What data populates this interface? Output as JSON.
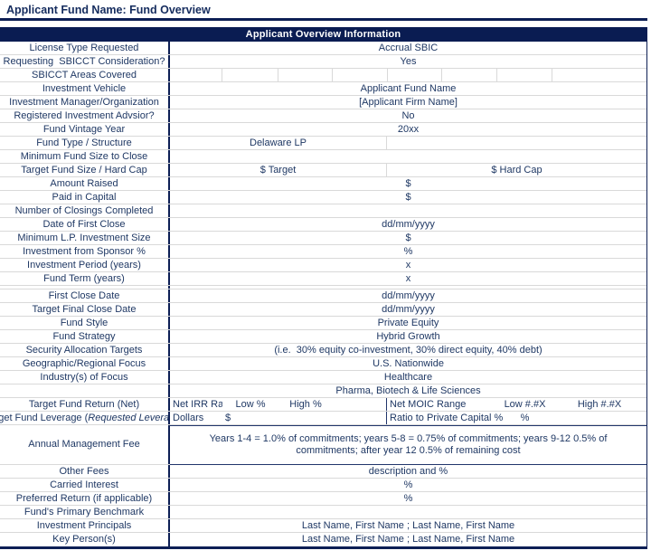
{
  "page_title": "Applicant Fund Name: Fund Overview",
  "table_header": "Applicant Overview Information",
  "colors": {
    "navy_bar": "#0a1c52",
    "navy_rule": "#0d1f55",
    "text_navy": "#1f3864",
    "grid_gray": "#d9d9d9"
  },
  "rows": [
    {
      "label": "License Type Requested",
      "value": "Accrual SBIC"
    },
    {
      "label": "Requesting  SBICCT Consideration?",
      "value": "Yes"
    },
    {
      "label": "SBICCT Areas Covered",
      "cells": [
        "",
        "",
        "",
        "",
        "",
        "",
        "",
        ""
      ]
    },
    {
      "label": "Investment Vehicle",
      "value": "Applicant Fund Name"
    },
    {
      "label": "Investment Manager/Organization",
      "value": "[Applicant Firm Name]"
    },
    {
      "label": "Registered Investment Advsior?",
      "value": "No"
    },
    {
      "label": "Fund Vintage Year",
      "value": "20xx"
    },
    {
      "label": "Fund Type / Structure",
      "value": "Delaware LP"
    },
    {
      "label": "Minimum Fund Size to Close",
      "value": ""
    },
    {
      "label": "Target Fund Size / Hard Cap",
      "left": "$ Target",
      "right": "$ Hard Cap"
    },
    {
      "label": "Amount Raised",
      "value": "$"
    },
    {
      "label": "Paid in Capital",
      "value": "$"
    },
    {
      "label": "Number of Closings Completed",
      "value": ""
    },
    {
      "label": "Date of First Close",
      "value": "dd/mm/yyyy"
    },
    {
      "label": "Minimum L.P. Investment Size",
      "value": "$"
    },
    {
      "label": "Investment from Sponsor %",
      "value": "%"
    },
    {
      "label": "Investment Period (years)",
      "value": "x"
    },
    {
      "label": "Fund Term (years)",
      "value": "x"
    },
    {
      "label": "First Close Date",
      "value": "dd/mm/yyyy"
    },
    {
      "label": "Target Final Close Date",
      "value": "dd/mm/yyyy"
    },
    {
      "label": "Fund Style",
      "value": "Private Equity"
    },
    {
      "label": "Fund Strategy",
      "value": "Hybrid Growth"
    },
    {
      "label": "Security Allocation Targets",
      "value": "(i.e.  30% equity co-investment, 30% direct equity, 40% debt)"
    },
    {
      "label": "Geographic/Regional Focus",
      "value": "U.S. Nationwide"
    },
    {
      "label": "Industry(s) of Focus",
      "value": "Healthcare"
    },
    {
      "label": "",
      "value": "Pharma, Biotech & Life Sciences"
    }
  ],
  "return_row": {
    "label": "Target Fund Return (Net)",
    "irr_label": "Net IRR Range",
    "low_pct": "Low %",
    "high_pct": "High %",
    "moic_label": "Net MOIC Range",
    "low_x": "Low #.#X",
    "high_x": "High #.#X"
  },
  "leverage_row": {
    "label_prefix": "Target Fund Leverage (",
    "label_italic": "Requested Leverage)",
    "dollars": "Dollars",
    "dollar_sign": "$",
    "ratio_label": "Ratio to Private Capital %",
    "pct": "%"
  },
  "management_fee_row": {
    "label": "Annual Management Fee",
    "value": "Years 1-4 = 1.0% of commitments; years 5-8 = 0.75% of commitments; years 9-12 0.5% of commitments; after year 12 0.5% of remaining cost"
  },
  "bottom_rows": [
    {
      "label": "Other Fees",
      "value": "description and %"
    },
    {
      "label": "Carried Interest",
      "value": "%"
    },
    {
      "label": "Preferred Return (if applicable)",
      "value": "%"
    },
    {
      "label": "Fund's Primary Benchmark",
      "value": ""
    },
    {
      "label": "Investment Principals",
      "value": "Last Name, First Name ; Last Name, First Name"
    },
    {
      "label": "Key Person(s)",
      "value": "Last Name, First Name ; Last Name, First Name"
    }
  ]
}
